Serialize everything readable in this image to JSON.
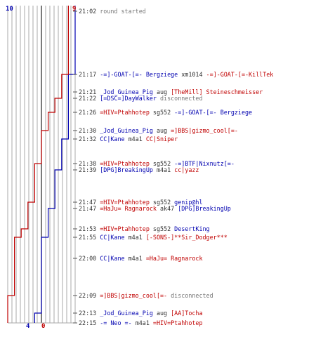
{
  "colors": {
    "blue_team": "#0000b0",
    "red_team": "#c00000",
    "text": "#333333",
    "muted": "#777777",
    "grid": "#aaaaaa"
  },
  "chart_data": {
    "type": "line",
    "title": "",
    "xlabel": "",
    "ylabel": "",
    "x": [
      "21:02",
      "21:17",
      "21:21",
      "21:22",
      "21:26",
      "21:30",
      "21:32",
      "21:38",
      "21:39",
      "21:47",
      "21:47",
      "21:53",
      "21:55",
      "22:00",
      "22:09",
      "22:13",
      "22:15"
    ],
    "x_range": [
      0,
      10
    ],
    "top_labels": {
      "left": "10",
      "right": "9"
    },
    "bottom_labels": {
      "blue": "4",
      "red": "0"
    },
    "series": [
      {
        "color": "#0000b0",
        "values": [
          10,
          10,
          9,
          9,
          9,
          9,
          9,
          8,
          8,
          7,
          7,
          6,
          6,
          5,
          5,
          5,
          4
        ]
      },
      {
        "color": "#c00000",
        "values": [
          9,
          9,
          8,
          8,
          7,
          6,
          5,
          5,
          4,
          4,
          3,
          3,
          2,
          1,
          1,
          0,
          0
        ]
      }
    ]
  },
  "events": [
    {
      "time": "21:02",
      "parts": [
        {
          "text": "round started",
          "c": "gray"
        }
      ]
    },
    {
      "time": "21:17",
      "parts": [
        {
          "text": "-=]-GOAT-[=- Bergziege",
          "c": "blue"
        },
        {
          "text": " xm1014 ",
          "c": "t"
        },
        {
          "text": "-=]-GOAT-[=-KillTek",
          "c": "red"
        }
      ]
    },
    {
      "time": "21:21",
      "parts": [
        {
          "text": "_Jod_Guinea_Pig",
          "c": "blue"
        },
        {
          "text": " aug ",
          "c": "t"
        },
        {
          "text": "[TheMill] Steineschmeisser",
          "c": "red"
        }
      ]
    },
    {
      "time": "21:22",
      "parts": [
        {
          "text": "[=DSC=]DayWalker",
          "c": "blue"
        },
        {
          "text": " disconnected",
          "c": "gray"
        }
      ]
    },
    {
      "time": "21:26",
      "parts": [
        {
          "text": "=HIV=Ptahhotep",
          "c": "red"
        },
        {
          "text": " sg552 ",
          "c": "t"
        },
        {
          "text": "-=]-GOAT-[=- Bergziege",
          "c": "blue"
        }
      ]
    },
    {
      "time": "21:30",
      "parts": [
        {
          "text": "_Jod_Guinea_Pig",
          "c": "blue"
        },
        {
          "text": " aug ",
          "c": "t"
        },
        {
          "text": "=]BBS|gizmo_cool[=-",
          "c": "red"
        }
      ]
    },
    {
      "time": "21:32",
      "parts": [
        {
          "text": "CC|Kane",
          "c": "blue"
        },
        {
          "text": " m4a1 ",
          "c": "t"
        },
        {
          "text": "CC|Sniper",
          "c": "red"
        }
      ]
    },
    {
      "time": "21:38",
      "parts": [
        {
          "text": "=HIV=Ptahhotep",
          "c": "red"
        },
        {
          "text": " sg552 ",
          "c": "t"
        },
        {
          "text": "-=]BTF|Nixnutz[=-",
          "c": "blue"
        }
      ]
    },
    {
      "time": "21:39",
      "parts": [
        {
          "text": "[DPG]BreakingUp",
          "c": "blue"
        },
        {
          "text": " m4a1 ",
          "c": "t"
        },
        {
          "text": "cc|yazz",
          "c": "red"
        }
      ]
    },
    {
      "time": "21:47",
      "parts": [
        {
          "text": "=HIV=Ptahhotep",
          "c": "red"
        },
        {
          "text": " sg552 ",
          "c": "t"
        },
        {
          "text": "genip@hl",
          "c": "blue"
        }
      ]
    },
    {
      "time": "21:47",
      "parts": [
        {
          "text": "=HaJu= Ragnarock",
          "c": "red"
        },
        {
          "text": " ak47 ",
          "c": "t"
        },
        {
          "text": "[DPG]BreakingUp",
          "c": "blue"
        }
      ]
    },
    {
      "time": "21:53",
      "parts": [
        {
          "text": "=HIV=Ptahhotep",
          "c": "red"
        },
        {
          "text": " sg552 ",
          "c": "t"
        },
        {
          "text": "DesertKing",
          "c": "blue"
        }
      ]
    },
    {
      "time": "21:55",
      "parts": [
        {
          "text": "CC|Kane",
          "c": "blue"
        },
        {
          "text": " m4a1 ",
          "c": "t"
        },
        {
          "text": "[-SONS-]**Sir_Dodger***",
          "c": "red"
        }
      ]
    },
    {
      "time": "22:00",
      "parts": [
        {
          "text": "CC|Kane",
          "c": "blue"
        },
        {
          "text": " m4a1 ",
          "c": "t"
        },
        {
          "text": "=HaJu= Ragnarock",
          "c": "red"
        }
      ]
    },
    {
      "time": "22:09",
      "parts": [
        {
          "text": "=]BBS|gizmo_cool[=-",
          "c": "red"
        },
        {
          "text": " disconnected",
          "c": "gray"
        }
      ]
    },
    {
      "time": "22:13",
      "parts": [
        {
          "text": "_Jod_Guinea_Pig",
          "c": "blue"
        },
        {
          "text": " aug ",
          "c": "t"
        },
        {
          "text": "[AA]Tocha",
          "c": "red"
        }
      ]
    },
    {
      "time": "22:15",
      "parts": [
        {
          "text": "-= Neo =-",
          "c": "blue"
        },
        {
          "text": " m4a1 ",
          "c": "t"
        },
        {
          "text": "=HIV=Ptahhotep",
          "c": "red"
        }
      ]
    }
  ]
}
